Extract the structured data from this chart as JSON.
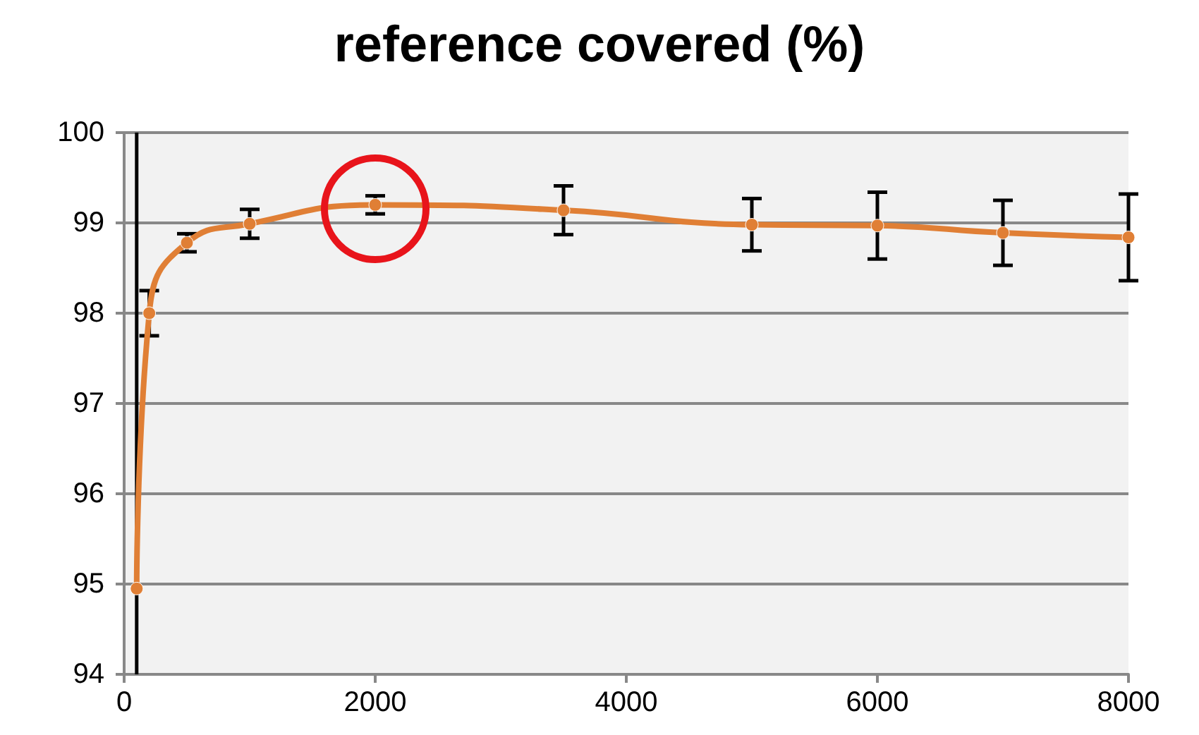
{
  "chart_data": {
    "type": "line",
    "title": "reference covered (%)",
    "x": [
      100,
      200,
      500,
      1000,
      2000,
      3500,
      5000,
      6000,
      7000,
      8000
    ],
    "series": [
      {
        "color": "#e07f35",
        "values": [
          94.95,
          98.0,
          98.78,
          98.99,
          99.2,
          99.14,
          98.98,
          98.97,
          98.89,
          98.84
        ],
        "errors": [
          null,
          0.25,
          0.1,
          0.16,
          0.1,
          0.27,
          0.29,
          0.37,
          0.36,
          0.48
        ]
      }
    ],
    "xlim": [
      0,
      8000
    ],
    "xticks": [
      0,
      2000,
      4000,
      6000,
      8000
    ],
    "ylim": [
      94,
      100
    ],
    "yticks": [
      94,
      95,
      96,
      97,
      98,
      99,
      100
    ],
    "ref_lines": [
      {
        "axis": "x",
        "value": 100,
        "color": "#000000"
      }
    ],
    "grid": "y",
    "marker": "circle",
    "line_style": "solid"
  }
}
